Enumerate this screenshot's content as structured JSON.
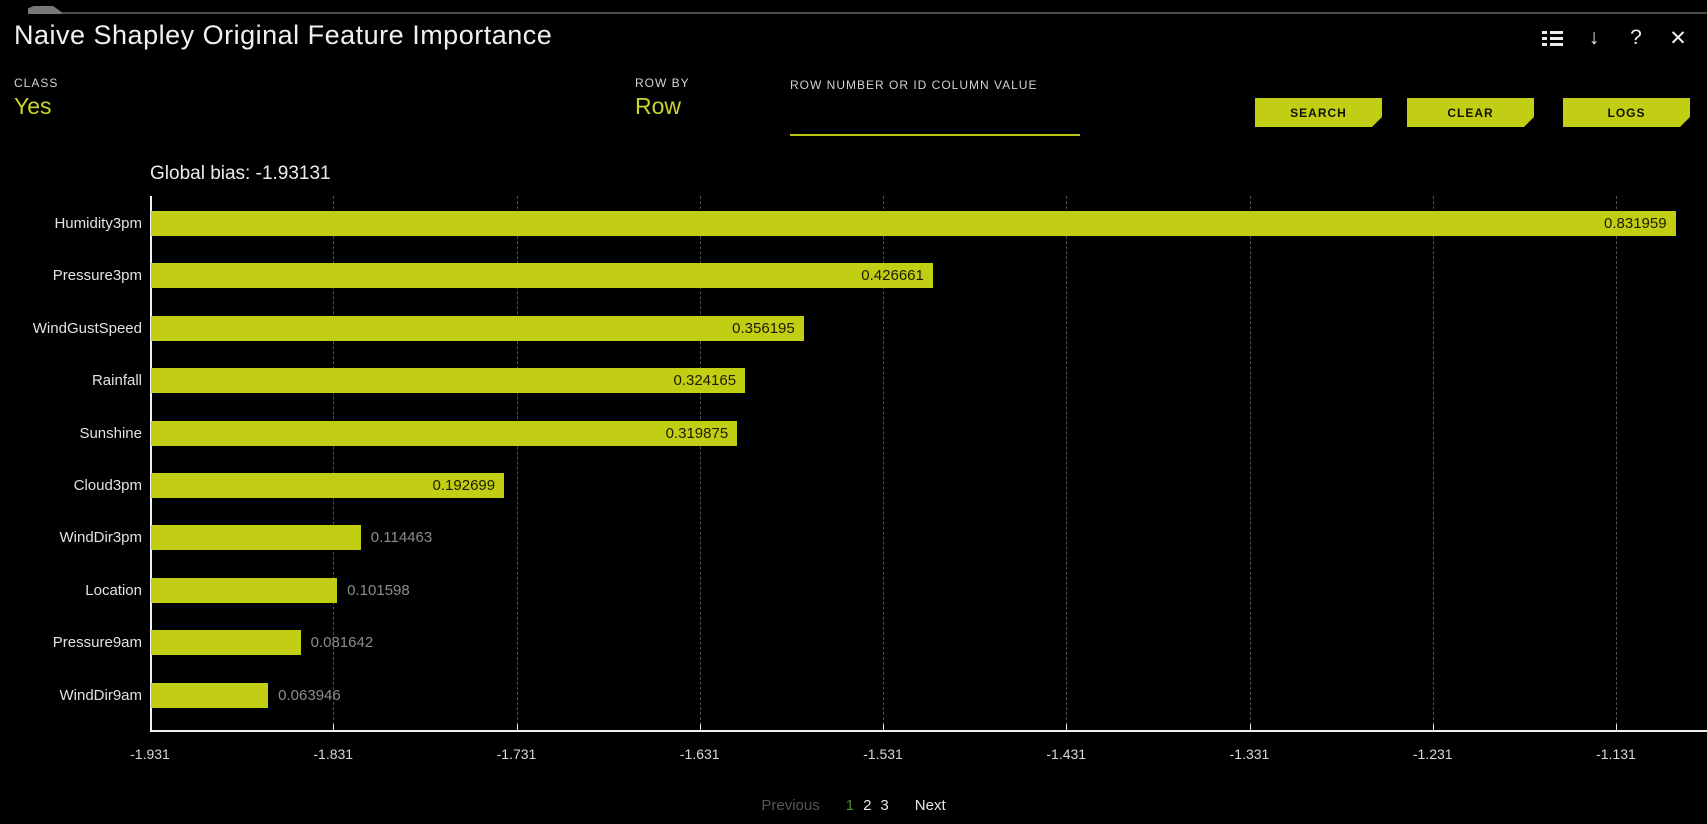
{
  "header": {
    "title": "Naive Shapley Original Feature Importance",
    "icon_glyphs": {
      "download": "↓",
      "help": "?",
      "close": "✕"
    }
  },
  "controls": {
    "class": {
      "label": "CLASS",
      "value": "Yes"
    },
    "row_by": {
      "label": "ROW BY",
      "value": "Row"
    },
    "row_input": {
      "label": "ROW NUMBER OR ID COLUMN VALUE",
      "value": "",
      "placeholder": ""
    },
    "buttons": {
      "search": "SEARCH",
      "clear": "CLEAR",
      "logs": "LOGS"
    }
  },
  "chart_data": {
    "type": "bar",
    "orientation": "horizontal",
    "title": "Global bias: -1.93131",
    "global_bias": -1.93131,
    "categories": [
      "Humidity3pm",
      "Pressure3pm",
      "WindGustSpeed",
      "Rainfall",
      "Sunshine",
      "Cloud3pm",
      "WindDir3pm",
      "Location",
      "Pressure9am",
      "WindDir9am"
    ],
    "values": [
      0.831959,
      0.426661,
      0.356195,
      0.324165,
      0.319875,
      0.192699,
      0.114463,
      0.101598,
      0.081642,
      0.063946
    ],
    "value_labels": [
      "0.831959",
      "0.426661",
      "0.356195",
      "0.324165",
      "0.319875",
      "0.192699",
      "0.114463",
      "0.101598",
      "0.081642",
      "0.063946"
    ],
    "x_ticks": [
      "-1.931",
      "-1.831",
      "-1.731",
      "-1.631",
      "-1.531",
      "-1.431",
      "-1.331",
      "-1.231",
      "-1.131"
    ],
    "x_tick_step": 0.1,
    "xlim": [
      -1.931,
      -1.0835
    ],
    "grid": "dashed-vertical",
    "legend": "none",
    "bar_color": "#c2ce14",
    "value_label_inside_color": "#1a1d00",
    "value_label_outside_color": "#8c8c8c"
  },
  "pagination": {
    "previous": "Previous",
    "pages": [
      "1",
      "2",
      "3"
    ],
    "current_page": "1",
    "next": "Next"
  },
  "colors": {
    "background": "#000000",
    "accent": "#c2ce14",
    "accent_text": "#c9d42c",
    "axis": "#f0f0f0",
    "page_current": "#4e8e2f"
  }
}
